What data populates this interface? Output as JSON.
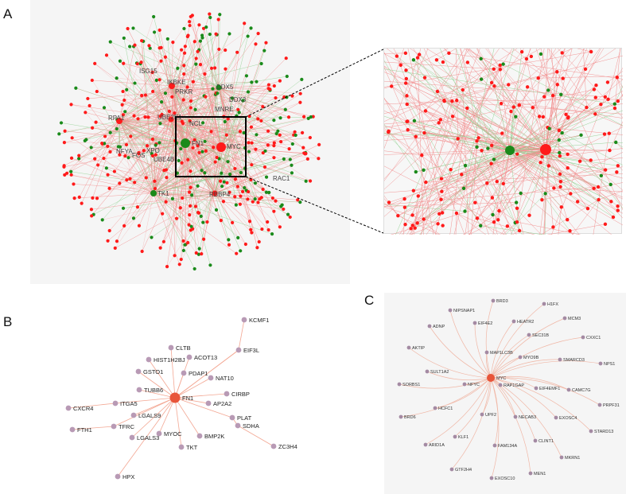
{
  "panels": {
    "a": "A",
    "b": "B",
    "c": "C"
  },
  "colors": {
    "red_node": "#ff1a1a",
    "green_node": "#1a8a1a",
    "red_edge": "#f28b8b",
    "green_edge": "#8fcf8f",
    "hub_b": "#e8553a",
    "leaf_b": "#b89ab5",
    "edge_b": "#f3a793",
    "leaf_c": "#a48aa3",
    "edge_c": "#f0b7a6"
  },
  "panel_a": {
    "labels": [
      {
        "text": "ISG15",
        "color": "green"
      },
      {
        "text": "IKBKE",
        "color": "red"
      },
      {
        "text": "PRKR",
        "color": "red"
      },
      {
        "text": "DDX5",
        "color": "green"
      },
      {
        "text": "DDX3",
        "color": "red"
      },
      {
        "text": "MNRE",
        "color": "red"
      },
      {
        "text": "RPA1",
        "color": "red"
      },
      {
        "text": "UBE2E1",
        "color": "red"
      },
      {
        "text": "NCL",
        "color": "red"
      },
      {
        "text": "NFYA",
        "color": "red"
      },
      {
        "text": "XPO",
        "color": "red"
      },
      {
        "text": "FOS",
        "color": "red"
      },
      {
        "text": "FN1",
        "color": "green"
      },
      {
        "text": "MYC",
        "color": "red"
      },
      {
        "text": "UBE4B",
        "color": "red"
      },
      {
        "text": "TK1",
        "color": "green"
      },
      {
        "text": "RBBP4",
        "color": "red"
      },
      {
        "text": "RAC1",
        "color": "red"
      }
    ]
  },
  "panel_b": {
    "hub": "FN1",
    "leaves": [
      "KCMF1",
      "CLTB",
      "ACOT13",
      "EIF3L",
      "HIST1H2BJ",
      "PDAP1",
      "NAT10",
      "GSTO1",
      "CIRBP",
      "TUBB6",
      "AP2A2",
      "ITGA5",
      "CXCR4",
      "LGALS9",
      "PLAT",
      "SDHA",
      "ZC3H4",
      "TFRC",
      "MYOC",
      "BMP2K",
      "FTH1",
      "LGALS3",
      "TKT",
      "HPX"
    ]
  },
  "panel_c": {
    "hub": "MYC",
    "leaves": [
      "NIPSNAP1",
      "BRD3",
      "H1FX",
      "ADNP",
      "EIF4E2",
      "HEATR2",
      "MCM3",
      "SEC31B",
      "CXXC1",
      "AKTIP",
      "MAP1LC3B",
      "MYO9B",
      "SMARCD3",
      "NPS1",
      "SULT1A2",
      "SORBS1",
      "NFYC",
      "RAP1GAP",
      "EIF4EMF1",
      "CAMC7G",
      "PRPF31",
      "HCFC1",
      "BRD6",
      "UPF2",
      "NECAB3",
      "EXOSC4",
      "STARD13",
      "KLF1",
      "CLINT1",
      "ARID1A",
      "FAM134A",
      "MKRN1",
      "GTF2H4",
      "EXOSC10",
      "MEN1"
    ]
  }
}
